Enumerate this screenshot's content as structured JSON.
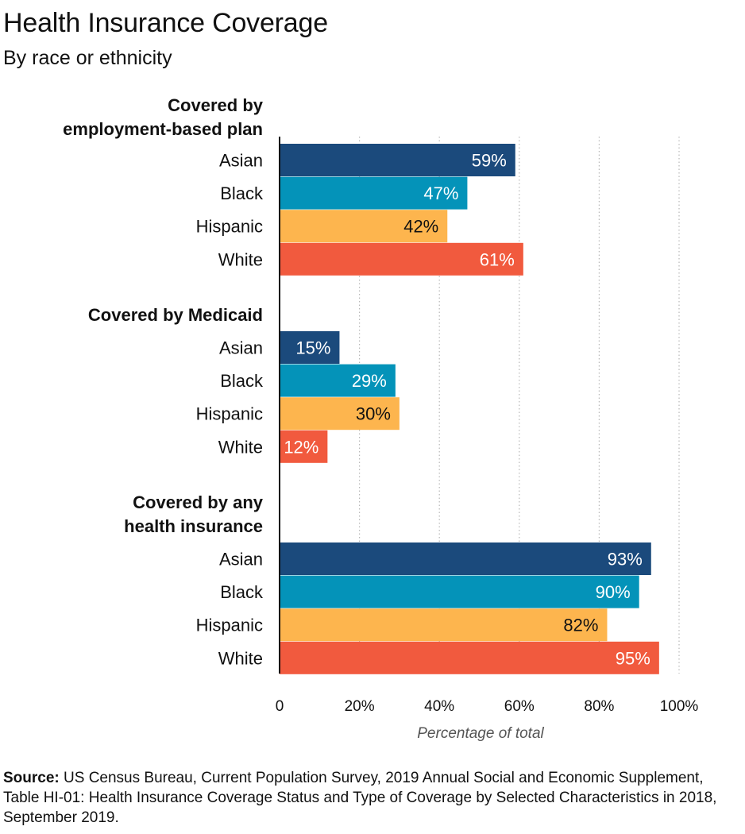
{
  "title": "Health Insurance Coverage",
  "subtitle": "By race or ethnicity",
  "source_label": "Source:",
  "source_text": "US Census Bureau, Current Population Survey, 2019 Annual Social and Economic Supplement, Table HI-01: Health Insurance Coverage Status and Type of Coverage by Selected Characteristics in 2018, September 2019.",
  "colors": {
    "Asian": "#1b4a7c",
    "Black": "#0493b9",
    "Hispanic": "#fdb54e",
    "White": "#f15a3e"
  },
  "chart_data": {
    "type": "bar",
    "orientation": "horizontal",
    "xlabel": "Percentage of total",
    "xlim": [
      0,
      100
    ],
    "xticks": [
      "0",
      "20%",
      "40%",
      "60%",
      "80%",
      "100%"
    ],
    "xtick_values": [
      0,
      20,
      40,
      60,
      80,
      100
    ],
    "grid": "vertical dotted",
    "groups": [
      {
        "label": [
          "Covered by",
          "employment-based plan"
        ],
        "categories": [
          "Asian",
          "Black",
          "Hispanic",
          "White"
        ],
        "values": [
          59,
          47,
          42,
          61
        ],
        "labels": [
          "59%",
          "47%",
          "42%",
          "61%"
        ]
      },
      {
        "label": [
          "Covered by Medicaid"
        ],
        "categories": [
          "Asian",
          "Black",
          "Hispanic",
          "White"
        ],
        "values": [
          15,
          29,
          30,
          12
        ],
        "labels": [
          "15%",
          "29%",
          "30%",
          "12%"
        ]
      },
      {
        "label": [
          "Covered by any",
          "health insurance"
        ],
        "categories": [
          "Asian",
          "Black",
          "Hispanic",
          "White"
        ],
        "values": [
          93,
          90,
          82,
          95
        ],
        "labels": [
          "93%",
          "90%",
          "82%",
          "95%"
        ]
      }
    ]
  }
}
